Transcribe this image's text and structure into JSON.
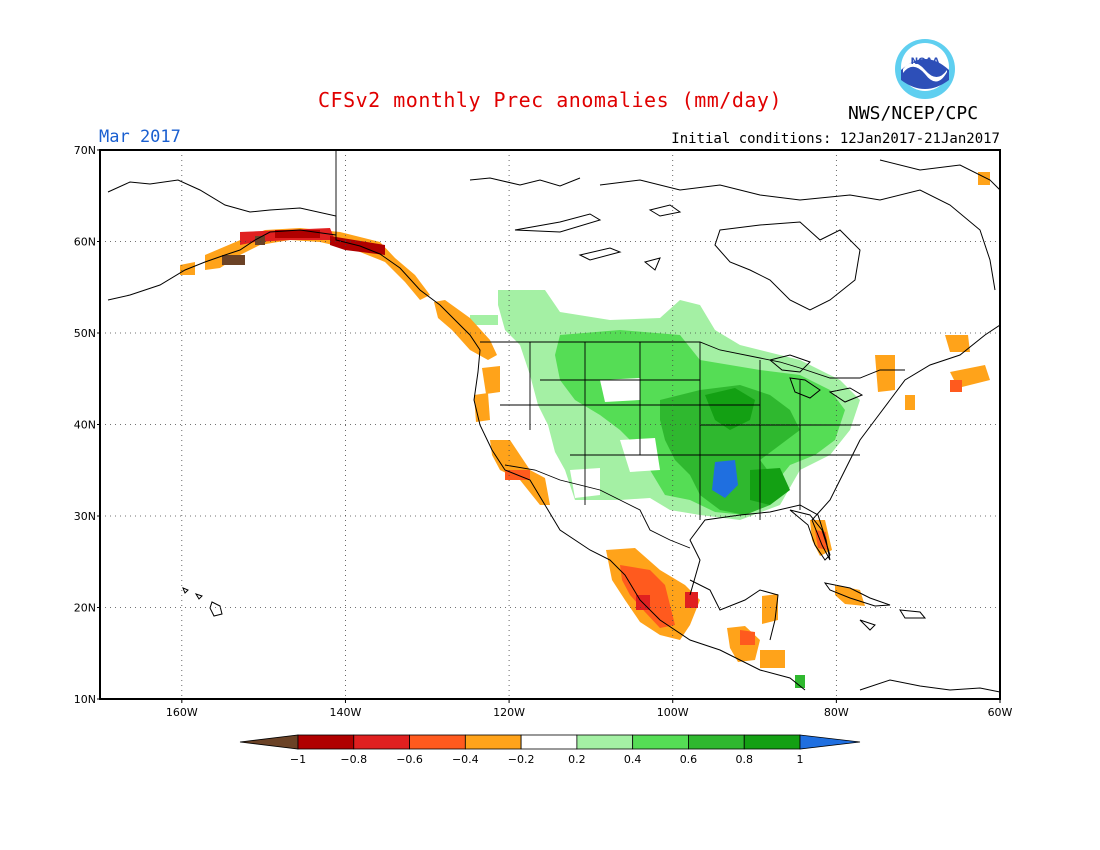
{
  "title": "CFSv2 monthly Prec anomalies (mm/day)",
  "month": "Mar 2017",
  "initial_conditions": "Initial conditions: 12Jan2017-21Jan2017",
  "agency": "NWS/NCEP/CPC",
  "logo_text": "NOAA",
  "logo_icon": "noaa-logo-icon",
  "lat_ticks": [
    "70N",
    "60N",
    "50N",
    "40N",
    "30N",
    "20N",
    "10N"
  ],
  "lon_ticks": [
    "160W",
    "140W",
    "120W",
    "100W",
    "80W",
    "60W"
  ],
  "colorbar": {
    "labels": [
      "-1",
      "-0.8",
      "-0.6",
      "-0.4",
      "-0.2",
      "0.2",
      "0.4",
      "0.6",
      "0.8",
      "1"
    ],
    "colors": [
      "#6b4226",
      "#b00000",
      "#e02020",
      "#ff5a1e",
      "#ffa31a",
      "#ffffff",
      "#a4f0a4",
      "#55dd55",
      "#2fb82f",
      "#13a013",
      "#1f6fe0"
    ]
  },
  "anomaly_colors": {
    "orange": "#ffa31a",
    "redorange": "#ff5a1e",
    "red": "#e02020",
    "darkred": "#b00000",
    "brown": "#6b4226",
    "lightgreen": "#a4f0a4",
    "green": "#55dd55",
    "midgreen": "#2fb82f",
    "darkgreen": "#13a013",
    "blue": "#1f6fe0"
  }
}
